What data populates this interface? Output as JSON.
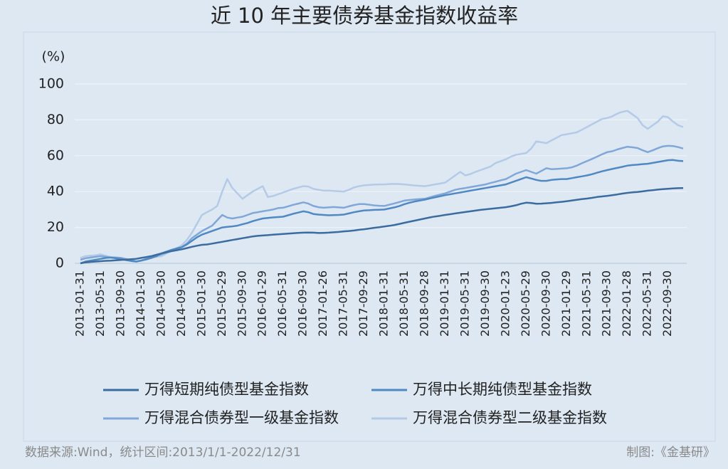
{
  "chart_data": {
    "type": "line",
    "title": "近 10 年主要债券基金指数收益率",
    "y_unit": "(%)",
    "categories": [
      "2013-01-31",
      null,
      null,
      null,
      "2013-05-31",
      null,
      null,
      null,
      "2013-09-30",
      null,
      null,
      null,
      "2014-01-30",
      null,
      null,
      null,
      "2014-05-30",
      null,
      null,
      null,
      "2014-09-30",
      null,
      null,
      null,
      "2015-01-30",
      null,
      null,
      null,
      "2015-05-29",
      null,
      null,
      null,
      "2015-09-30",
      null,
      null,
      null,
      "2016-01-29",
      null,
      null,
      null,
      "2016-05-31",
      null,
      null,
      null,
      "2016-09-30",
      null,
      null,
      null,
      "2017-01-26",
      null,
      null,
      null,
      "2017-05-31",
      null,
      null,
      null,
      "2017-09-29",
      null,
      null,
      null,
      "2018-01-31",
      null,
      null,
      null,
      "2018-05-31",
      null,
      null,
      null,
      "2018-09-28",
      null,
      null,
      null,
      "2019-01-31",
      null,
      null,
      null,
      "2019-05-31",
      null,
      null,
      null,
      "2019-09-30",
      null,
      null,
      null,
      "2020-01-23",
      null,
      null,
      null,
      "2020-05-29",
      null,
      null,
      null,
      "2020-09-30",
      null,
      null,
      null,
      "2021-01-29",
      null,
      null,
      null,
      "2021-05-31",
      null,
      null,
      null,
      "2021-09-30",
      null,
      null,
      null,
      "2022-01-28",
      null,
      null,
      null,
      "2022-05-31",
      null,
      null,
      null,
      "2022-09-30",
      null,
      null,
      null
    ],
    "series": [
      {
        "name": "万得短期纯债型基金指数",
        "color": "#3b6b9f",
        "values": [
          0,
          0.5,
          0.8,
          1,
          1.2,
          1.4,
          1.5,
          1.7,
          1.9,
          2.1,
          2.3,
          2.5,
          3,
          3.5,
          4,
          4.8,
          5.5,
          6.2,
          6.8,
          7.3,
          7.8,
          8.5,
          9.2,
          9.8,
          10.3,
          10.5,
          11,
          11.5,
          12,
          12.5,
          13,
          13.5,
          14,
          14.5,
          15,
          15.3,
          15.5,
          15.7,
          16,
          16.2,
          16.4,
          16.6,
          16.8,
          17,
          17.1,
          17.2,
          17.1,
          16.9,
          17,
          17.1,
          17.3,
          17.5,
          17.8,
          18,
          18.3,
          18.7,
          19,
          19.4,
          19.8,
          20.1,
          20.5,
          20.9,
          21.4,
          22,
          22.6,
          23.2,
          23.8,
          24.4,
          25,
          25.6,
          26.1,
          26.5,
          27,
          27.4,
          27.8,
          28.2,
          28.6,
          29,
          29.4,
          29.8,
          30.1,
          30.4,
          30.7,
          31,
          31.3,
          31.8,
          32.4,
          33.2,
          33.8,
          33.6,
          33.2,
          33.3,
          33.5,
          33.7,
          34,
          34.3,
          34.6,
          35,
          35.4,
          35.8,
          36.1,
          36.5,
          37,
          37.3,
          37.6,
          38,
          38.4,
          38.9,
          39.3,
          39.6,
          39.8,
          40.1,
          40.5,
          40.8,
          41.1,
          41.4,
          41.6,
          41.8,
          41.9,
          42
        ]
      },
      {
        "name": "万得中长期纯债型基金指数",
        "color": "#5089c2",
        "values": [
          0,
          1,
          1.5,
          2,
          2.5,
          3,
          3.2,
          2.8,
          2.4,
          1.8,
          1.3,
          1,
          1.5,
          2.2,
          3,
          4,
          5.5,
          6.5,
          7.5,
          8.3,
          9,
          10.5,
          12.5,
          14.5,
          16,
          17,
          18,
          19,
          20,
          20.3,
          20.6,
          21,
          21.8,
          22.5,
          23.5,
          24.3,
          25,
          25.3,
          25.6,
          25.8,
          26,
          26.8,
          27.6,
          28.3,
          29,
          28.5,
          27.5,
          27.2,
          27,
          26.8,
          26.9,
          27,
          27.2,
          27.8,
          28.5,
          29,
          29.5,
          29.6,
          29.8,
          29.9,
          30,
          30.6,
          31.2,
          32,
          33,
          33.8,
          34.5,
          35,
          35.5,
          36.2,
          36.8,
          37.4,
          38,
          38.5,
          39,
          39.5,
          40,
          40.5,
          41,
          41.5,
          42,
          42.5,
          43,
          43.5,
          44,
          45,
          46,
          47,
          48,
          47.3,
          46.5,
          46,
          46,
          46.5,
          46.8,
          47,
          47,
          47.5,
          48,
          48.5,
          49,
          49.7,
          50.5,
          51.3,
          52,
          52.6,
          53.2,
          53.8,
          54.5,
          54.8,
          55,
          55.3,
          55.5,
          56,
          56.5,
          57,
          57.5,
          57.6,
          57.2,
          57
        ]
      },
      {
        "name": "万得混合债券型一级基金指数",
        "color": "#80a7d7",
        "values": [
          2,
          2.8,
          3.2,
          3.6,
          4,
          3.6,
          3.2,
          3.2,
          3,
          2.4,
          1.8,
          1,
          1.5,
          2.5,
          3.3,
          4.2,
          5,
          6,
          7,
          8,
          9,
          11,
          14,
          16,
          18,
          19.5,
          21,
          24,
          27,
          25.5,
          25,
          25.5,
          26,
          27,
          28,
          28.5,
          29,
          29.5,
          30,
          30.8,
          31,
          31.8,
          32.6,
          33.3,
          34,
          33.3,
          32,
          31.3,
          31,
          31.2,
          31.4,
          31.2,
          31,
          31.8,
          32.5,
          33,
          33,
          32.7,
          32.3,
          32.1,
          32,
          32.7,
          33.4,
          34.2,
          35,
          35.3,
          35.6,
          35.8,
          36,
          36.8,
          37.6,
          38.3,
          39,
          40,
          41,
          41.6,
          42,
          42.5,
          43,
          43.5,
          44,
          44.8,
          45.5,
          46.3,
          47,
          48.5,
          50,
          51,
          52,
          51,
          50,
          51.5,
          53,
          52.5,
          52.6,
          52.8,
          53,
          53.5,
          54.5,
          55.8,
          57,
          58.2,
          59.5,
          60.8,
          62,
          62.5,
          63.5,
          64.3,
          65,
          64.7,
          64.3,
          63,
          62,
          63,
          64.2,
          65.2,
          65.5,
          65.4,
          64.8,
          64
        ]
      },
      {
        "name": "万得混合债券型二级基金指数",
        "color": "#b5cae7",
        "values": [
          3,
          4,
          4.3,
          4.5,
          5,
          4.2,
          3.5,
          3.3,
          3,
          2.3,
          1.5,
          1,
          1.5,
          2.5,
          3.2,
          3.6,
          4,
          5.5,
          7,
          8.5,
          10,
          13,
          17,
          22,
          27,
          28.5,
          30,
          32,
          40,
          47,
          42,
          39,
          36,
          38,
          40,
          41.5,
          43,
          37,
          37.5,
          38.5,
          39.5,
          40.5,
          41.5,
          42.3,
          43,
          42.8,
          41.5,
          41,
          40.5,
          40.5,
          40.4,
          40.2,
          40,
          41,
          42.3,
          43,
          43.5,
          43.7,
          43.9,
          44,
          44,
          44.2,
          44.3,
          44.2,
          44,
          43.7,
          43.4,
          43.2,
          43,
          43.5,
          44,
          44.5,
          45,
          47,
          49,
          51,
          49,
          49.8,
          51,
          52,
          53,
          54,
          56,
          57,
          58,
          59.5,
          60.5,
          61,
          61.5,
          64,
          68,
          67.5,
          67,
          68.5,
          70,
          71.5,
          72,
          72.5,
          73,
          74.5,
          76,
          77.5,
          79,
          80.5,
          81,
          82,
          83.5,
          84.5,
          85,
          83,
          81,
          77,
          75,
          77,
          79,
          82,
          81.5,
          79,
          77,
          76
        ]
      }
    ],
    "ylim": [
      0,
      100
    ],
    "yticks": [
      0,
      20,
      40,
      60,
      80,
      100
    ],
    "grid": true
  },
  "footer": {
    "source": "数据来源:Wind，统计区间:2013/1/1-2022/12/31",
    "credit": "制图:《金基研》"
  }
}
